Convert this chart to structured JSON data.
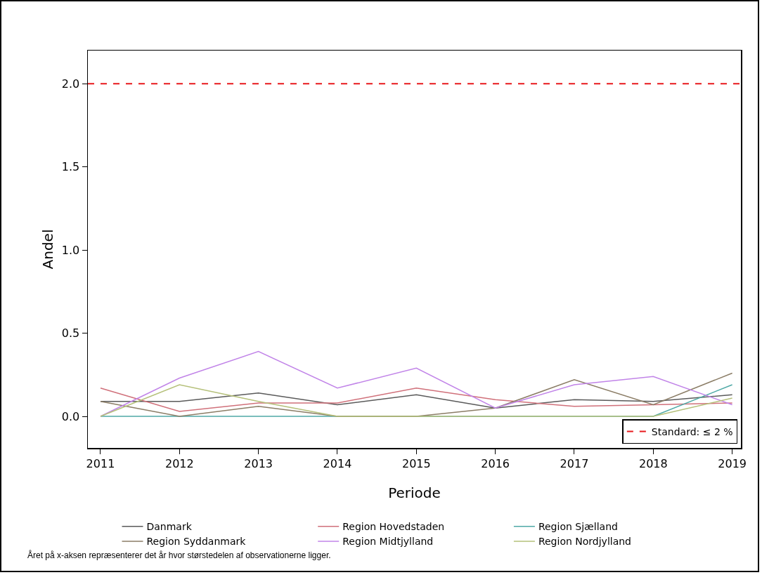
{
  "chart_data": {
    "type": "line",
    "xlabel": "Periode",
    "ylabel": "Andel",
    "x": [
      2011,
      2012,
      2013,
      2014,
      2015,
      2016,
      2017,
      2018,
      2019
    ],
    "xlim": [
      2010.84,
      2019.11
    ],
    "xticks": [
      2011,
      2012,
      2013,
      2014,
      2015,
      2016,
      2017,
      2018,
      2019
    ],
    "ylim": [
      -0.19,
      2.2
    ],
    "yticks": [
      {
        "value": 0,
        "label": "0.0"
      },
      0.5,
      {
        "value": 1,
        "label": "1.0"
      },
      1.5,
      {
        "value": 2,
        "label": "2.0"
      }
    ],
    "grid": false,
    "legend": "bottom",
    "marker": "none",
    "line_style": "solid",
    "series": [
      {
        "name": "Danmark",
        "color": "#5a5a5a",
        "values": [
          0.09,
          0.09,
          0.14,
          0.07,
          0.13,
          0.05,
          0.1,
          0.09,
          0.13
        ]
      },
      {
        "name": "Region Hovedstaden",
        "color": "#d0707a",
        "values": [
          0.17,
          0.03,
          0.08,
          0.08,
          0.17,
          0.1,
          0.06,
          0.07,
          0.08
        ]
      },
      {
        "name": "Region Sjælland",
        "color": "#4fa9a6",
        "values": [
          0,
          0,
          0,
          0,
          0,
          0,
          0,
          0,
          0.19
        ]
      },
      {
        "name": "Region Syddanmark",
        "color": "#8b7d66",
        "values": [
          0.09,
          0,
          0.06,
          0,
          0,
          0.05,
          0.22,
          0.07,
          0.26
        ]
      },
      {
        "name": "Region Midtjylland",
        "color": "#c184e8",
        "values": [
          0,
          0.23,
          0.39,
          0.17,
          0.29,
          0.05,
          0.19,
          0.24,
          0.07
        ]
      },
      {
        "name": "Region Nordjylland",
        "color": "#b5c07a",
        "values": [
          0,
          0.19,
          0.09,
          0,
          0,
          0,
          0,
          0,
          0.11
        ]
      }
    ],
    "ref_lines": [
      {
        "axis": "y",
        "value": 2,
        "label": "Standard: ≤ 2 %",
        "color": "#e8191c",
        "line_style": "dashed"
      }
    ],
    "annotations": [
      "Året på x-aksen repræsenterer det år hvor størstedelen af observationerne ligger."
    ]
  }
}
